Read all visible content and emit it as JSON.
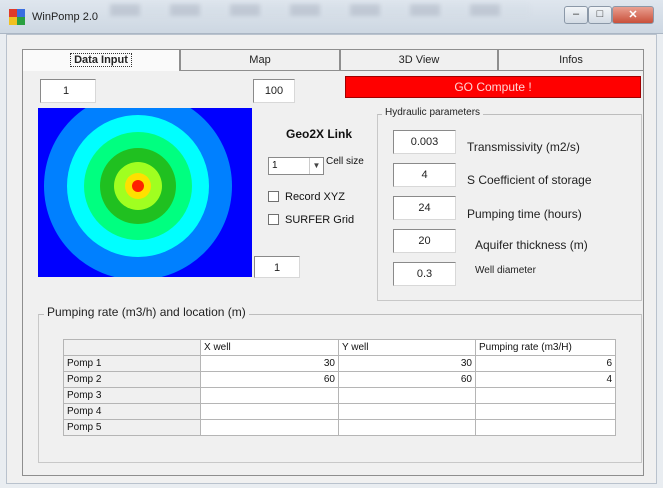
{
  "window": {
    "title": "WinPomp 2.0"
  },
  "tabs": [
    {
      "label": "Data Input",
      "active": true
    },
    {
      "label": "Map",
      "active": false
    },
    {
      "label": "3D View",
      "active": false
    },
    {
      "label": "Infos",
      "active": false
    }
  ],
  "data_input": {
    "top_left_field": "1",
    "top_mid_field": "100",
    "go_button": "GO Compute !",
    "colors": {
      "go_button": "#ff0000",
      "map_background": "#0000ff"
    },
    "geo2x": {
      "title": "Geo2X Link",
      "cell_size_value": "1",
      "cell_size_label": "Cell size",
      "record_xyz_label": "Record XYZ",
      "surfer_grid_label": "SURFER Grid",
      "record_xyz_checked": false,
      "surfer_grid_checked": false
    },
    "bottom_map_field": "1",
    "hydraulic": {
      "legend": "Hydraulic parameters",
      "params": [
        {
          "value": "0.003",
          "label": "Transmissivity (m2/s)"
        },
        {
          "value": "4",
          "label": "S Coefficient of storage"
        },
        {
          "value": "24",
          "label": "Pumping time (hours)"
        },
        {
          "value": "20",
          "label": "Aquifer thickness (m)"
        },
        {
          "value": "0.3",
          "label": "Well diameter"
        }
      ]
    },
    "pumping": {
      "legend": "Pumping rate (m3/h) and location (m)",
      "headers": [
        "",
        "X well",
        "Y well",
        "Pumping rate (m3/H)"
      ],
      "rows": [
        {
          "name": "Pomp 1",
          "x": "30",
          "y": "30",
          "rate": "6"
        },
        {
          "name": "Pomp 2",
          "x": "60",
          "y": "60",
          "rate": "4"
        },
        {
          "name": "Pomp 3",
          "x": "",
          "y": "",
          "rate": ""
        },
        {
          "name": "Pomp 4",
          "x": "",
          "y": "",
          "rate": ""
        },
        {
          "name": "Pomp 5",
          "x": "",
          "y": "",
          "rate": ""
        }
      ]
    }
  }
}
